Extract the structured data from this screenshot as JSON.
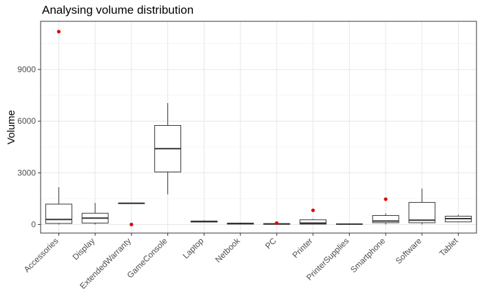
{
  "chart_data": {
    "type": "boxplot",
    "title": "Analysing volume distribution",
    "xlabel": "",
    "ylabel": "Volume",
    "ylim": [
      -500,
      11800
    ],
    "yticks": [
      0,
      3000,
      6000,
      9000
    ],
    "grid": true,
    "categories": [
      "Accessories",
      "Display",
      "ExtendedWarranty",
      "GameConsole",
      "Laptop",
      "Netbook",
      "PC",
      "Printer",
      "PrinterSupplies",
      "Smartphone",
      "Software",
      "Tablet"
    ],
    "boxes": [
      {
        "category": "Accessories",
        "min": 0,
        "q1": 60,
        "median": 290,
        "q3": 1180,
        "max": 2160,
        "outliers": [
          11200
        ]
      },
      {
        "category": "Display",
        "min": 0,
        "q1": 80,
        "median": 370,
        "q3": 650,
        "max": 1250,
        "outliers": []
      },
      {
        "category": "ExtendedWarranty",
        "min": 1230,
        "q1": 1230,
        "median": 1230,
        "q3": 1230,
        "max": 1230,
        "outliers": [
          0
        ]
      },
      {
        "category": "GameConsole",
        "min": 1750,
        "q1": 3050,
        "median": 4400,
        "q3": 5750,
        "max": 7050,
        "outliers": []
      },
      {
        "category": "Laptop",
        "min": 120,
        "q1": 140,
        "median": 170,
        "q3": 200,
        "max": 240,
        "outliers": []
      },
      {
        "category": "Netbook",
        "min": 0,
        "q1": 20,
        "median": 50,
        "q3": 80,
        "max": 110,
        "outliers": []
      },
      {
        "category": "PC",
        "min": 0,
        "q1": 10,
        "median": 30,
        "q3": 50,
        "max": 70,
        "outliers": [
          80
        ]
      },
      {
        "category": "Printer",
        "min": 0,
        "q1": 20,
        "median": 80,
        "q3": 270,
        "max": 320,
        "outliers": [
          820
        ]
      },
      {
        "category": "PrinterSupplies",
        "min": 0,
        "q1": 10,
        "median": 20,
        "q3": 30,
        "max": 40,
        "outliers": []
      },
      {
        "category": "Smartphone",
        "min": 0,
        "q1": 100,
        "median": 200,
        "q3": 520,
        "max": 640,
        "outliers": [
          1470
        ]
      },
      {
        "category": "Software",
        "min": 0,
        "q1": 100,
        "median": 250,
        "q3": 1280,
        "max": 2080,
        "outliers": []
      },
      {
        "category": "Tablet",
        "min": 120,
        "q1": 150,
        "median": 340,
        "q3": 480,
        "max": 560,
        "outliers": []
      }
    ],
    "outlier_color": "#e00000"
  }
}
